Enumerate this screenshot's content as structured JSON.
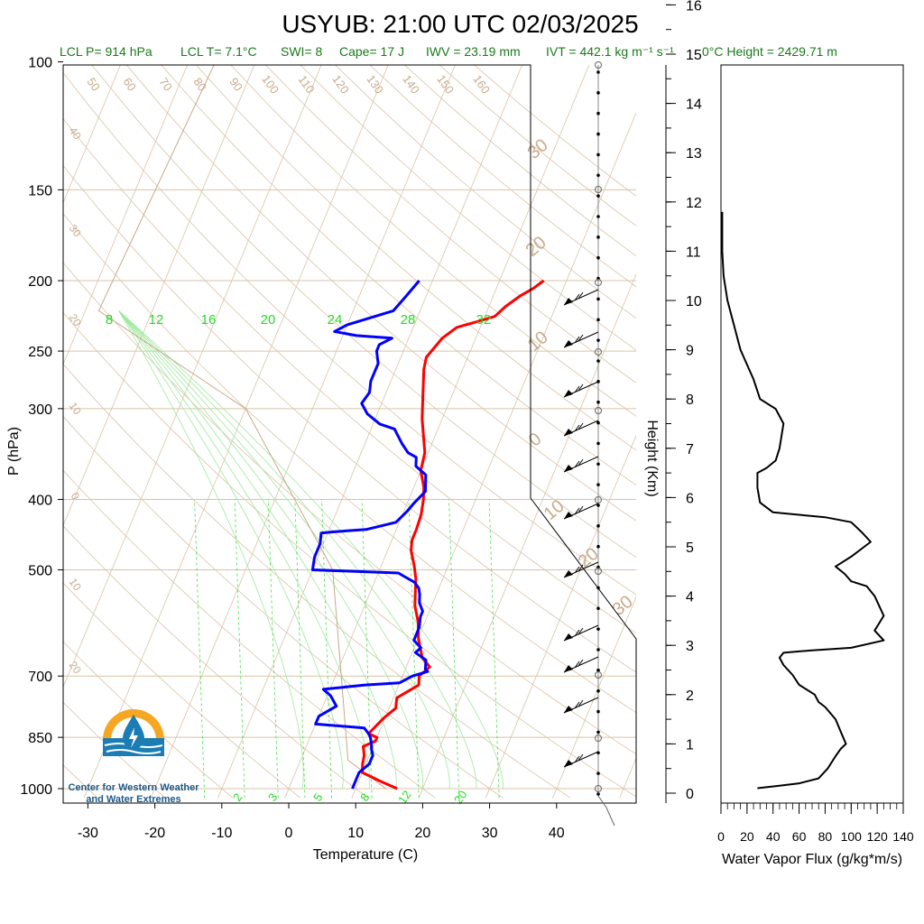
{
  "title": "USYUB: 21:00 UTC 02/03/2025",
  "subtitle": {
    "lcl_p": "LCL P= 914 hPa",
    "lcl_t": "LCL T= 7.1°C",
    "swi": "SWI= 8",
    "cape": "Cape= 17 J",
    "iwv": "IWV = 23.19 mm",
    "ivt": "IVT = 442.1 kg m⁻¹ s⁻¹",
    "freezing": "0°C Height = 2429.71 m"
  },
  "logo": {
    "line1": "Center for Western Weather",
    "line2": "and Water Extremes",
    "colors": {
      "sun": "#f5a623",
      "water": "#1b7db3"
    }
  },
  "chart_data": [
    {
      "type": "line",
      "subtype": "skew-t",
      "xlabel": "Temperature (C)",
      "ylabel": "P (hPa)",
      "xlim": [
        -35,
        50
      ],
      "ylim": [
        1025,
        100
      ],
      "yscale": "log",
      "x_ticks": [
        "-30",
        "-20",
        "-10",
        "0",
        "10",
        "20",
        "30",
        "40"
      ],
      "y_ticks": [
        "100",
        "150",
        "200",
        "250",
        "300",
        "400",
        "500",
        "700",
        "850",
        "1000"
      ],
      "dry_adiabat_labels": [
        "50",
        "60",
        "70",
        "80",
        "90",
        "100",
        "110",
        "120",
        "130",
        "140",
        "150",
        "160"
      ],
      "dry_adiabat_left_labels": [
        "40",
        "30",
        "20",
        "10",
        "0",
        "10",
        "20"
      ],
      "isotherm_labels": [
        "30",
        "20",
        "10",
        "0",
        "10",
        "20",
        "30"
      ],
      "moist_adiabat_labels": [
        "8",
        "12",
        "16",
        "20",
        "24",
        "28",
        "32"
      ],
      "mixing_ratio_labels": [
        "2",
        "3",
        "5",
        "8",
        "12",
        "20"
      ],
      "series": [
        {
          "name": "",
          "color": "#ff0000",
          "points": [
            [
              16.2,
              1000
            ],
            [
              13,
              975
            ],
            [
              10,
              950
            ],
            [
              9.5,
              925
            ],
            [
              9.2,
              900
            ],
            [
              8.5,
              875
            ],
            [
              10,
              860
            ],
            [
              10,
              850
            ],
            [
              8.5,
              840
            ],
            [
              9.8,
              800
            ],
            [
              11,
              775
            ],
            [
              10.5,
              750
            ],
            [
              13,
              720
            ],
            [
              12.5,
              700
            ],
            [
              13.5,
              680
            ],
            [
              11.8,
              660
            ],
            [
              10,
              620
            ],
            [
              9,
              590
            ],
            [
              7.5,
              560
            ],
            [
              6.5,
              530
            ],
            [
              6,
              515
            ],
            [
              5,
              495
            ],
            [
              3.5,
              470
            ],
            [
              3,
              455
            ],
            [
              3,
              440
            ],
            [
              2.8,
              420
            ],
            [
              2.2,
              400
            ],
            [
              1.5,
              385
            ],
            [
              0,
              365
            ],
            [
              -0.5,
              345
            ],
            [
              -3,
              310
            ],
            [
              -4.5,
              285
            ],
            [
              -5.8,
              265
            ],
            [
              -6.2,
              255
            ],
            [
              -5,
              240
            ],
            [
              -3.5,
              232
            ],
            [
              -1,
              228
            ],
            [
              1.5,
              224
            ],
            [
              2.5,
              217
            ],
            [
              4,
              210
            ],
            [
              5.5,
              205
            ],
            [
              6.6,
              200
            ]
          ]
        },
        {
          "name": "",
          "color": "#0000ff",
          "points": [
            [
              9.5,
              1000
            ],
            [
              9.5,
              975
            ],
            [
              9.5,
              950
            ],
            [
              10.5,
              925
            ],
            [
              10.5,
              900
            ],
            [
              10,
              885
            ],
            [
              9.5,
              865
            ],
            [
              9,
              850
            ],
            [
              8.5,
              840
            ],
            [
              7.5,
              825
            ],
            [
              0,
              815
            ],
            [
              0,
              795
            ],
            [
              2,
              770
            ],
            [
              0.5,
              745
            ],
            [
              -1,
              730
            ],
            [
              5,
              720
            ],
            [
              10,
              715
            ],
            [
              11.5,
              700
            ],
            [
              13.5,
              690
            ],
            [
              13,
              685
            ],
            [
              12.5,
              665
            ],
            [
              10.5,
              650
            ],
            [
              11,
              640
            ],
            [
              9.5,
              625
            ],
            [
              9.5,
              600
            ],
            [
              9,
              580
            ],
            [
              9,
              570
            ],
            [
              8,
              555
            ],
            [
              7.5,
              540
            ],
            [
              7,
              530
            ],
            [
              6,
              520
            ],
            [
              4,
              510
            ],
            [
              3,
              505
            ],
            [
              -10,
              500
            ],
            [
              -10.5,
              480
            ],
            [
              -10.5,
              460
            ],
            [
              -11,
              445
            ],
            [
              -9,
              443
            ],
            [
              -4.5,
              440
            ],
            [
              -0.5,
              430
            ],
            [
              0.5,
              415
            ],
            [
              1,
              405
            ],
            [
              2,
              390
            ],
            [
              1,
              370
            ],
            [
              -1,
              360
            ],
            [
              -1.5,
              350
            ],
            [
              -3,
              345
            ],
            [
              -4.5,
              335
            ],
            [
              -6.5,
              320
            ],
            [
              -9,
              315
            ],
            [
              -11.5,
              305
            ],
            [
              -13,
              295
            ],
            [
              -12.5,
              285
            ],
            [
              -13,
              275
            ],
            [
              -13,
              260
            ],
            [
              -14,
              250
            ],
            [
              -14,
              245
            ],
            [
              -12.5,
              240
            ],
            [
              -18,
              238
            ],
            [
              -21.5,
              235
            ],
            [
              -20,
              230
            ],
            [
              -17,
              225
            ],
            [
              -14,
              220
            ],
            [
              -13,
              210
            ],
            [
              -12,
              200
            ]
          ]
        }
      ],
      "winds": [
        "barb-100",
        "barb-150",
        "barb-200",
        "barb-250",
        "barb-300",
        "barb-400",
        "barb-500",
        "barb-700",
        "barb-850",
        "barb-1000"
      ]
    },
    {
      "type": "line",
      "xlabel": "Water Vapor Flux (g/kg*m/s)",
      "ylabel": "Height (Km)",
      "xlim": [
        0,
        140
      ],
      "ylim": [
        -0.3,
        16.5
      ],
      "x_ticks": [
        "0",
        "20",
        "40",
        "60",
        "80",
        "100",
        "120",
        "140"
      ],
      "y_ticks": [
        "0",
        "1",
        "2",
        "3",
        "4",
        "5",
        "6",
        "7",
        "8",
        "9",
        "10",
        "11",
        "12",
        "13",
        "14",
        "15",
        "16"
      ],
      "series": [
        {
          "name": "",
          "color": "#000000",
          "points": [
            [
              28,
              0.1
            ],
            [
              45,
              0.15
            ],
            [
              60,
              0.2
            ],
            [
              75,
              0.3
            ],
            [
              82,
              0.5
            ],
            [
              88,
              0.75
            ],
            [
              92,
              0.9
            ],
            [
              96,
              1.0
            ],
            [
              92,
              1.25
            ],
            [
              88,
              1.5
            ],
            [
              80,
              1.75
            ],
            [
              75,
              1.85
            ],
            [
              72,
              2.0
            ],
            [
              60,
              2.2
            ],
            [
              55,
              2.4
            ],
            [
              48,
              2.6
            ],
            [
              45,
              2.75
            ],
            [
              48,
              2.85
            ],
            [
              70,
              2.9
            ],
            [
              100,
              2.95
            ],
            [
              125,
              3.1
            ],
            [
              118,
              3.3
            ],
            [
              125,
              3.6
            ],
            [
              118,
              4.0
            ],
            [
              112,
              4.2
            ],
            [
              100,
              4.3
            ],
            [
              95,
              4.45
            ],
            [
              88,
              4.6
            ],
            [
              100,
              4.8
            ],
            [
              110,
              5.0
            ],
            [
              115,
              5.1
            ],
            [
              108,
              5.3
            ],
            [
              100,
              5.5
            ],
            [
              80,
              5.6
            ],
            [
              60,
              5.65
            ],
            [
              40,
              5.7
            ],
            [
              30,
              5.9
            ],
            [
              28,
              6.2
            ],
            [
              28,
              6.5
            ],
            [
              35,
              6.6
            ],
            [
              42,
              6.75
            ],
            [
              45,
              7.0
            ],
            [
              48,
              7.5
            ],
            [
              42,
              7.8
            ],
            [
              30,
              8.0
            ],
            [
              25,
              8.4
            ],
            [
              15,
              9.0
            ],
            [
              10,
              9.5
            ],
            [
              5,
              10.0
            ],
            [
              2,
              10.5
            ],
            [
              1,
              11.0
            ],
            [
              1,
              11.8
            ]
          ]
        }
      ]
    }
  ]
}
